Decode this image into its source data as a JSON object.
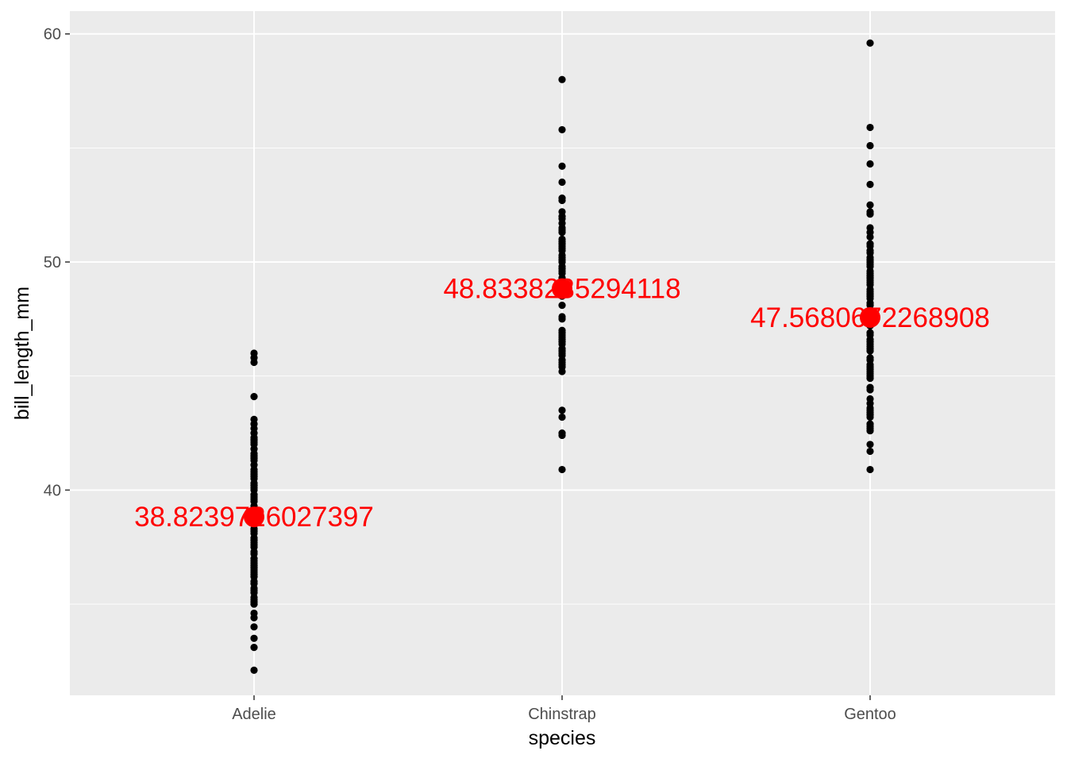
{
  "chart_data": {
    "type": "scatter",
    "title": "",
    "xlabel": "species",
    "ylabel": "bill_length_mm",
    "categories": [
      "Adelie",
      "Chinstrap",
      "Gentoo"
    ],
    "ylim": [
      31.0,
      61.0
    ],
    "yticks": [
      40,
      50,
      60
    ],
    "ytick_labels": [
      "40",
      "50",
      "60"
    ],
    "grid": true,
    "legend": "none",
    "colors": {
      "points": "#000000",
      "mean": "#ff0000",
      "panel": "#ebebeb",
      "grid": "#ffffff"
    },
    "series": [
      {
        "category": "Adelie",
        "values": [
          32.1,
          33.1,
          33.5,
          34.0,
          34.4,
          34.6,
          35.0,
          35.1,
          35.2,
          35.3,
          35.5,
          35.6,
          35.7,
          35.9,
          36.0,
          36.2,
          36.3,
          36.4,
          36.5,
          36.6,
          36.7,
          36.8,
          36.9,
          37.0,
          37.2,
          37.3,
          37.5,
          37.6,
          37.7,
          37.8,
          37.9,
          38.1,
          38.2,
          38.3,
          38.5,
          38.6,
          38.7,
          38.8,
          38.9,
          39.0,
          39.2,
          39.3,
          39.5,
          39.6,
          39.7,
          39.8,
          40.0,
          40.1,
          40.2,
          40.3,
          40.5,
          40.6,
          40.7,
          40.8,
          40.9,
          41.1,
          41.3,
          41.4,
          41.5,
          41.6,
          41.8,
          42.0,
          42.1,
          42.2,
          42.3,
          42.5,
          42.7,
          42.9,
          43.1,
          44.1,
          45.6,
          45.8,
          46.0
        ],
        "mean": 38.8239726027397,
        "mean_label": "38.8239726027397"
      },
      {
        "category": "Chinstrap",
        "values": [
          40.9,
          42.4,
          42.5,
          43.2,
          43.5,
          45.2,
          45.4,
          45.5,
          45.6,
          45.7,
          45.9,
          46.0,
          46.1,
          46.2,
          46.4,
          46.5,
          46.6,
          46.7,
          46.8,
          46.9,
          47.0,
          47.5,
          47.6,
          48.1,
          48.5,
          49.0,
          49.2,
          49.3,
          49.5,
          49.6,
          49.7,
          49.8,
          50.0,
          50.1,
          50.2,
          50.3,
          50.5,
          50.6,
          50.7,
          50.8,
          50.9,
          51.0,
          51.3,
          51.4,
          51.5,
          51.7,
          51.9,
          52.0,
          52.2,
          52.7,
          52.8,
          53.5,
          54.2,
          55.8,
          58.0
        ],
        "mean": 48.8338235294118,
        "mean_label": "48.8338235294118"
      },
      {
        "category": "Gentoo",
        "values": [
          40.9,
          41.7,
          42.0,
          42.6,
          42.7,
          42.8,
          42.9,
          43.2,
          43.3,
          43.4,
          43.5,
          43.6,
          43.8,
          44.0,
          44.4,
          44.5,
          44.9,
          45.0,
          45.1,
          45.2,
          45.3,
          45.4,
          45.5,
          45.7,
          45.8,
          46.1,
          46.2,
          46.3,
          46.4,
          46.5,
          46.6,
          46.8,
          46.9,
          47.2,
          47.3,
          47.4,
          47.5,
          47.7,
          47.8,
          48.1,
          48.2,
          48.4,
          48.5,
          48.6,
          48.7,
          48.8,
          49.0,
          49.1,
          49.2,
          49.3,
          49.4,
          49.5,
          49.6,
          49.8,
          49.9,
          50.0,
          50.1,
          50.2,
          50.4,
          50.5,
          50.7,
          50.8,
          51.1,
          51.3,
          51.5,
          52.1,
          52.2,
          52.5,
          53.4,
          54.3,
          55.1,
          55.9,
          59.6
        ],
        "mean": 47.5680672268908,
        "mean_label": "47.5680672268908"
      }
    ]
  }
}
